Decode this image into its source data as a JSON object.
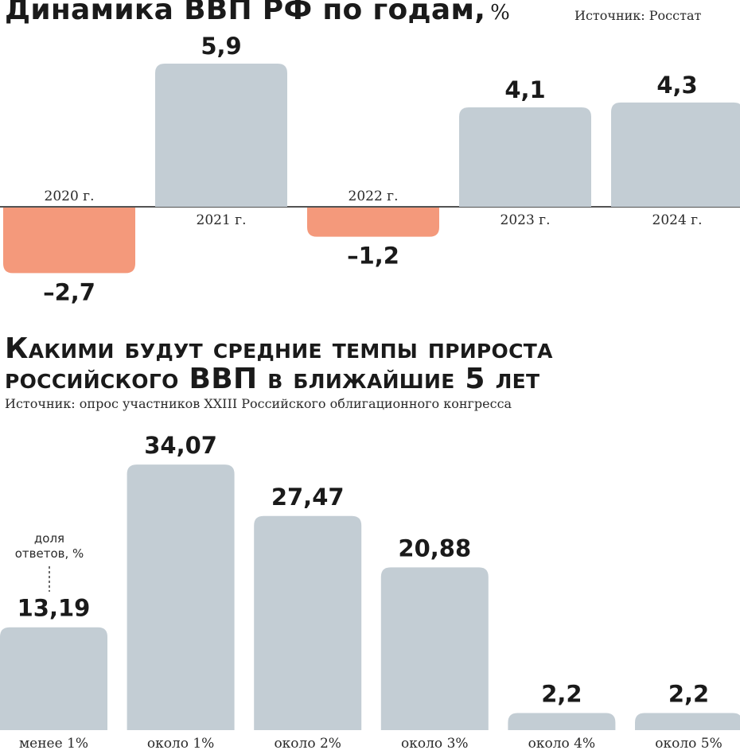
{
  "chart_data": [
    {
      "type": "bar",
      "title": "Динамика ВВП РФ по годам,",
      "unit": "%",
      "source": "Источник: Росстат",
      "categories": [
        "2020 г.",
        "2021 г.",
        "2022 г.",
        "2023 г.",
        "2024 г."
      ],
      "values": [
        -2.7,
        5.9,
        -1.2,
        4.1,
        4.3
      ],
      "value_labels": [
        "–2,7",
        "5,9",
        "–1,2",
        "4,1",
        "4,3"
      ],
      "positive_color": "#c3cdd4",
      "negative_color": "#f4997b",
      "grid": false,
      "legend": "none"
    },
    {
      "type": "bar",
      "title": "Какими будут средние темпы прироста российского ВВП в ближайшие 5 лет",
      "title_lines": [
        "Какими будут средние темпы прироста",
        "российского ВВП в ближайшие 5 лет"
      ],
      "source": "Источник: опрос участников XXIII Российского облигационного конгресса",
      "annotation_lines": [
        "доля",
        "ответов, %"
      ],
      "categories": [
        "менее 1%",
        "около 1%",
        "около 2%",
        "около 3%",
        "около 4%",
        "около 5%"
      ],
      "values": [
        13.19,
        34.07,
        27.47,
        20.88,
        2.2,
        2.2
      ],
      "value_labels": [
        "13,19",
        "34,07",
        "27,47",
        "20,88",
        "2,2",
        "2,2"
      ],
      "bar_color": "#c3cdd4",
      "grid": false,
      "legend": "none"
    }
  ]
}
